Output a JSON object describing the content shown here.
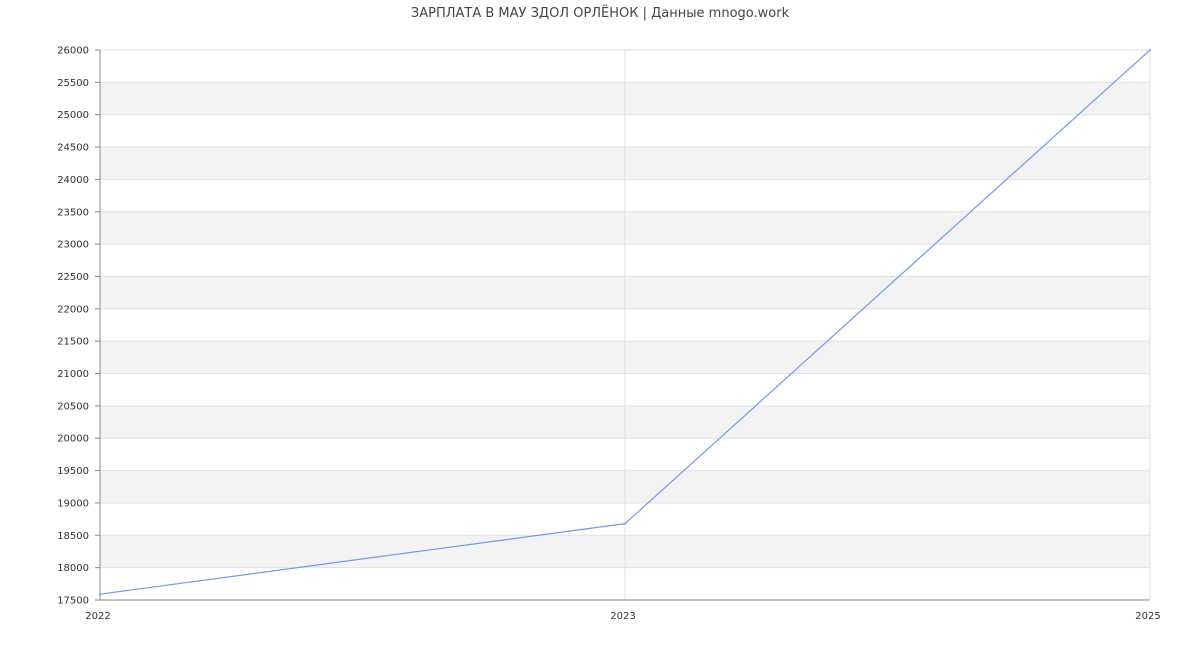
{
  "chart_data": {
    "type": "line",
    "title": "ЗАРПЛАТА В МАУ ЗДОЛ ОРЛЁНОК | Данные mnogo.work",
    "categories": [
      "2022",
      "2023",
      "2025"
    ],
    "series": [
      {
        "values": [
          17590,
          18680,
          26000
        ],
        "color": "#6d9af0"
      }
    ],
    "xlabel": "",
    "ylabel": "",
    "ylim": [
      17500,
      26000
    ],
    "ytick_step": 500,
    "grid": true,
    "band_color": "#f3f3f3"
  }
}
